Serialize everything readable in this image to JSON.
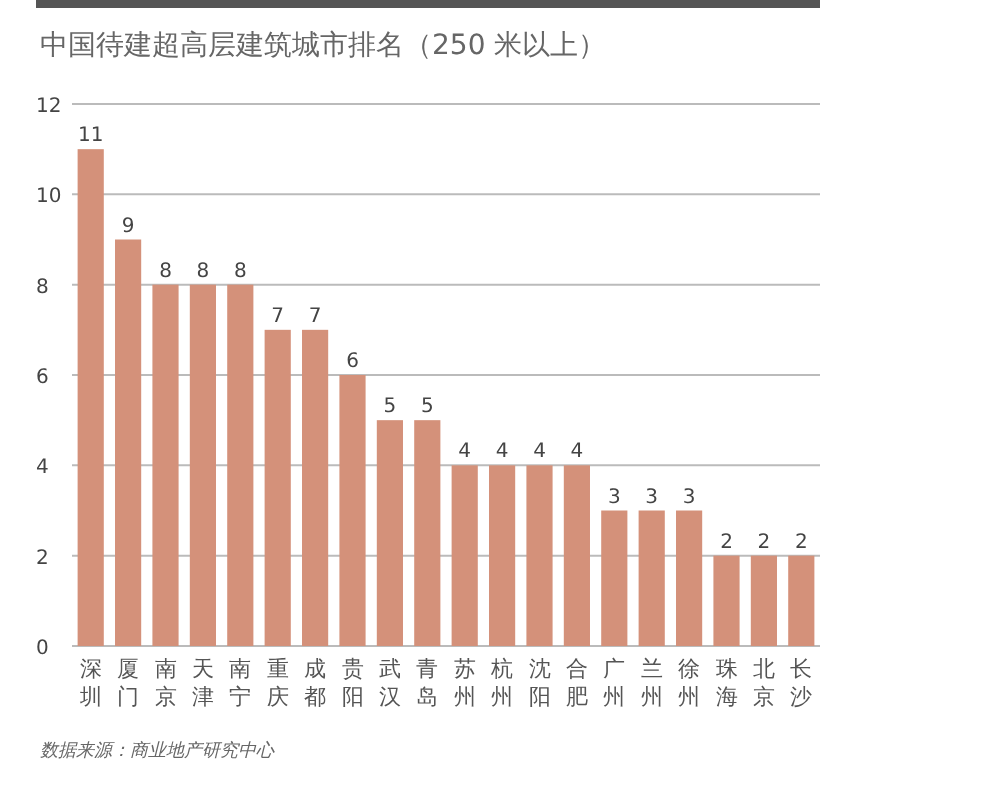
{
  "chart_data": {
    "type": "bar",
    "title": "中国待建超高层建筑城市排名（250 米以上）",
    "categories": [
      "深圳",
      "厦门",
      "南京",
      "天津",
      "南宁",
      "重庆",
      "成都",
      "贵阳",
      "武汉",
      "青岛",
      "苏州",
      "杭州",
      "沈阳",
      "合肥",
      "广州",
      "兰州",
      "徐州",
      "珠海",
      "北京",
      "长沙"
    ],
    "values": [
      11,
      9,
      8,
      8,
      8,
      7,
      7,
      6,
      5,
      5,
      4,
      4,
      4,
      4,
      3,
      3,
      3,
      2,
      2,
      2
    ],
    "color": "#d4917a",
    "ylim": [
      0,
      12
    ],
    "yticks": [
      0,
      2,
      4,
      6,
      8,
      10,
      12
    ],
    "grid": "y",
    "data_labels": true,
    "annotations": [
      "数据来源：商业地产研究中心"
    ]
  }
}
